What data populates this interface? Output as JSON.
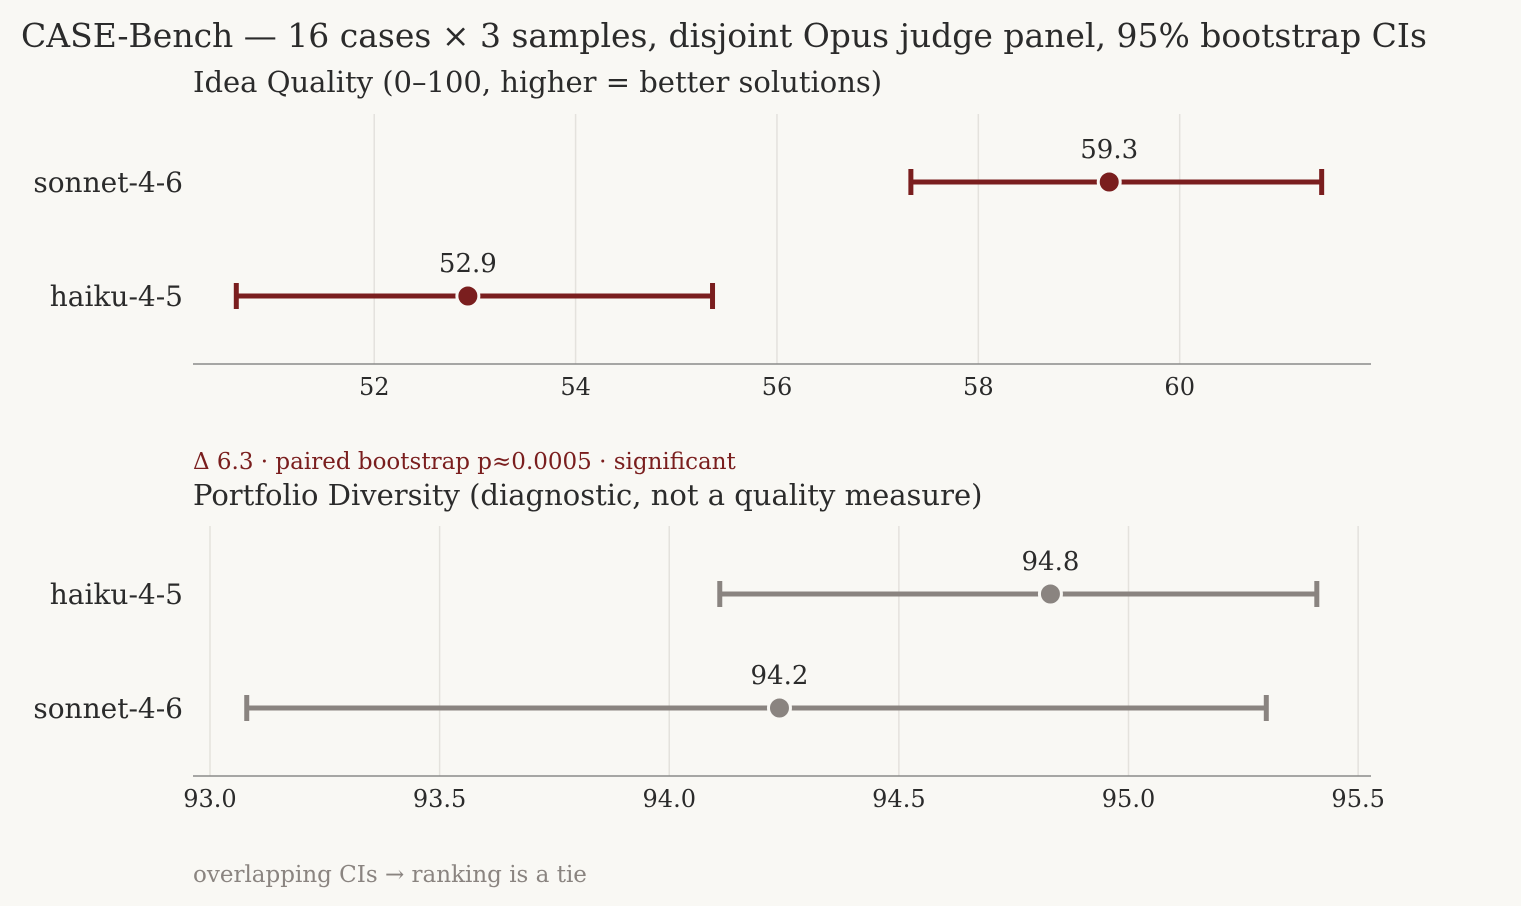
{
  "suptitle": "CASE-Bench — 16 cases × 3 samples, disjoint Opus judge panel, 95% bootstrap CIs",
  "colors": {
    "background": "#f9f8f4",
    "quality_series": "#7a1e1e",
    "diversity_series": "#8a8480",
    "grid": "#e4e2dd",
    "axis": "#8a8a8a",
    "text": "#2b2b2b",
    "muted_text": "#8a8480"
  },
  "chart_data": [
    {
      "type": "dot-errorbar",
      "title": "Idea Quality  (0–100, higher = better solutions)",
      "xlim": [
        50.2,
        61.9
      ],
      "xticks": [
        52,
        54,
        56,
        58,
        60
      ],
      "grid": "vertical",
      "color_key": "quality_series",
      "rows": [
        {
          "label": "sonnet-4-6",
          "value": 59.3,
          "value_label": "59.3",
          "ci": [
            57.33,
            61.41
          ]
        },
        {
          "label": "haiku-4-5",
          "value": 52.93,
          "value_label": "52.9",
          "ci": [
            50.63,
            55.36
          ]
        }
      ],
      "annotation": "Δ 6.3  ·  paired bootstrap p≈0.0005  ·  significant"
    },
    {
      "type": "dot-errorbar",
      "title": "Portfolio Diversity  (diagnostic, not a quality measure)",
      "xlim": [
        92.963,
        95.528
      ],
      "xticks": [
        93.0,
        93.5,
        94.0,
        94.5,
        95.0,
        95.5
      ],
      "xtick_labels": [
        "93.0",
        "93.5",
        "94.0",
        "94.5",
        "95.0",
        "95.5"
      ],
      "grid": "vertical",
      "color_key": "diversity_series",
      "rows": [
        {
          "label": "haiku-4-5",
          "value": 94.83,
          "value_label": "94.8",
          "ci": [
            94.11,
            95.41
          ]
        },
        {
          "label": "sonnet-4-6",
          "value": 94.24,
          "value_label": "94.2",
          "ci": [
            93.08,
            95.3
          ]
        }
      ],
      "annotation": "overlapping CIs → ranking is a tie"
    }
  ]
}
